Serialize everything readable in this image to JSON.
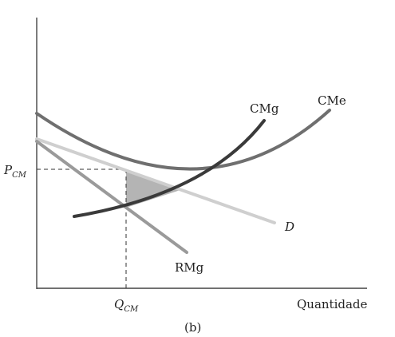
{
  "figure": {
    "panel_label": "(b)",
    "x_axis_label": "Quantidade",
    "price_label": {
      "main": "P",
      "sub": "CM"
    },
    "quantity_label": {
      "main": "Q",
      "sub": "CM"
    },
    "curves": {
      "cmg": "CMg",
      "cme": "CMe",
      "demand": "D",
      "rmg": "RMg"
    },
    "colors": {
      "cme": "#6f6f6f",
      "cmg": "#3a3a3a",
      "demand": "#cfcfcf",
      "rmg": "#9a9a9a",
      "deadweight_triangle": "#b4b4b4",
      "axis": "#444444"
    }
  }
}
